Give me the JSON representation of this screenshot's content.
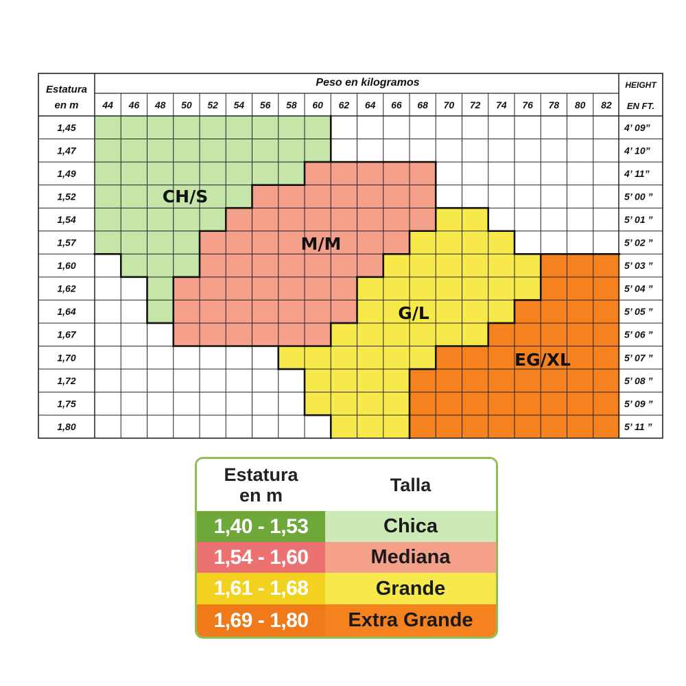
{
  "chart": {
    "corner_label_line1": "Estatura",
    "corner_label_line2": "en m",
    "title": "Peso en kilogramos",
    "right_label_line1": "HEIGHT",
    "right_label_line2": "EN  FT.",
    "weights": [
      "44",
      "46",
      "48",
      "50",
      "52",
      "54",
      "56",
      "58",
      "60",
      "62",
      "64",
      "66",
      "68",
      "70",
      "72",
      "74",
      "76",
      "78",
      "80",
      "82"
    ],
    "heights_m": [
      "1,45",
      "1,47",
      "1,49",
      "1,52",
      "1,54",
      "1,57",
      "1,60",
      "1,62",
      "1,64",
      "1,67",
      "1,70",
      "1,72",
      "1,75",
      "1,80"
    ],
    "heights_ft": [
      "4’ 09”",
      "4’ 10”",
      "4’ 11”",
      "5’ 00 ”",
      "5’ 01 ”",
      "5’ 02 ”",
      "5’ 03 ”",
      "5’ 04 ”",
      "5’ 05 ”",
      "5’ 06 ”",
      "5’ 07 ”",
      "5’ 08 ”",
      "5’ 09 ”",
      "5’ 11 ”"
    ]
  },
  "chart_data": {
    "type": "table",
    "title": "Peso en kilogramos",
    "row_header": "Estatura en m",
    "right_header": "HEIGHT EN FT.",
    "zones": [
      {
        "label": "CH/S",
        "color": "#c6e5a8"
      },
      {
        "label": "M/M",
        "color": "#f5a08a"
      },
      {
        "label": "G/L",
        "color": "#f8e94a"
      },
      {
        "label": "EG/XL",
        "color": "#f5821f"
      }
    ],
    "grid": [
      "SSSSSSSSS...........",
      "SSSSSSSSS...........",
      "SSSSSSSSMMMMM.......",
      "SSSSSSMMMMMMM.......",
      "SSSSSMMMMMMMMLL.....",
      "SSSSMMMMMMMMLLLL....",
      ".SSSMMMMMMMLLLLLLXXX",
      "..SMMMMMMMLLLLLLLXXX",
      "..SMMMMMMMLLLLLLXXXX",
      "...MMMMMMLLLLLLXXXXX",
      ".......LLLLLLXXXXXXX",
      "........LLLLXXXXXXXX",
      "........LLLLXXXXXXXX",
      ".........LLLXXXXXXXX"
    ]
  },
  "legend": {
    "header_col1_line1": "Estatura",
    "header_col1_line2": "en m",
    "header_col2": "Talla",
    "rows": [
      {
        "range": "1,40 - 1,53",
        "size": "Chica",
        "range_color": "#6fa83a",
        "size_color": "#cde9b5"
      },
      {
        "range": "1,54 - 1,60",
        "size": "Mediana",
        "range_color": "#ec7272",
        "size_color": "#f5a08a"
      },
      {
        "range": "1,61 - 1,68",
        "size": "Grande",
        "range_color": "#f2d21e",
        "size_color": "#f8e94a"
      },
      {
        "range": "1,69 - 1,80",
        "size": "Extra Grande",
        "range_color": "#f07a1a",
        "size_color": "#f5821f"
      }
    ]
  }
}
